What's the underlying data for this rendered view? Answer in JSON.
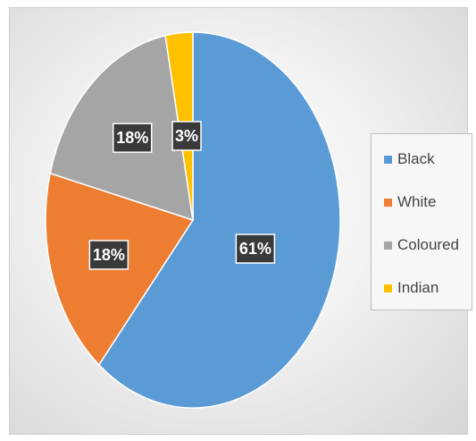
{
  "chart_data": {
    "type": "pie",
    "categories": [
      "Black",
      "White",
      "Coloured",
      "Indian"
    ],
    "values": [
      61,
      18,
      18,
      3
    ],
    "data_labels": [
      "61%",
      "18%",
      "18%",
      "3%"
    ],
    "colors": [
      "#5b9bd5",
      "#ed7d31",
      "#a5a5a5",
      "#ffc000"
    ],
    "start_angle": "12 o'clock",
    "direction": "clockwise",
    "legend": "right"
  }
}
